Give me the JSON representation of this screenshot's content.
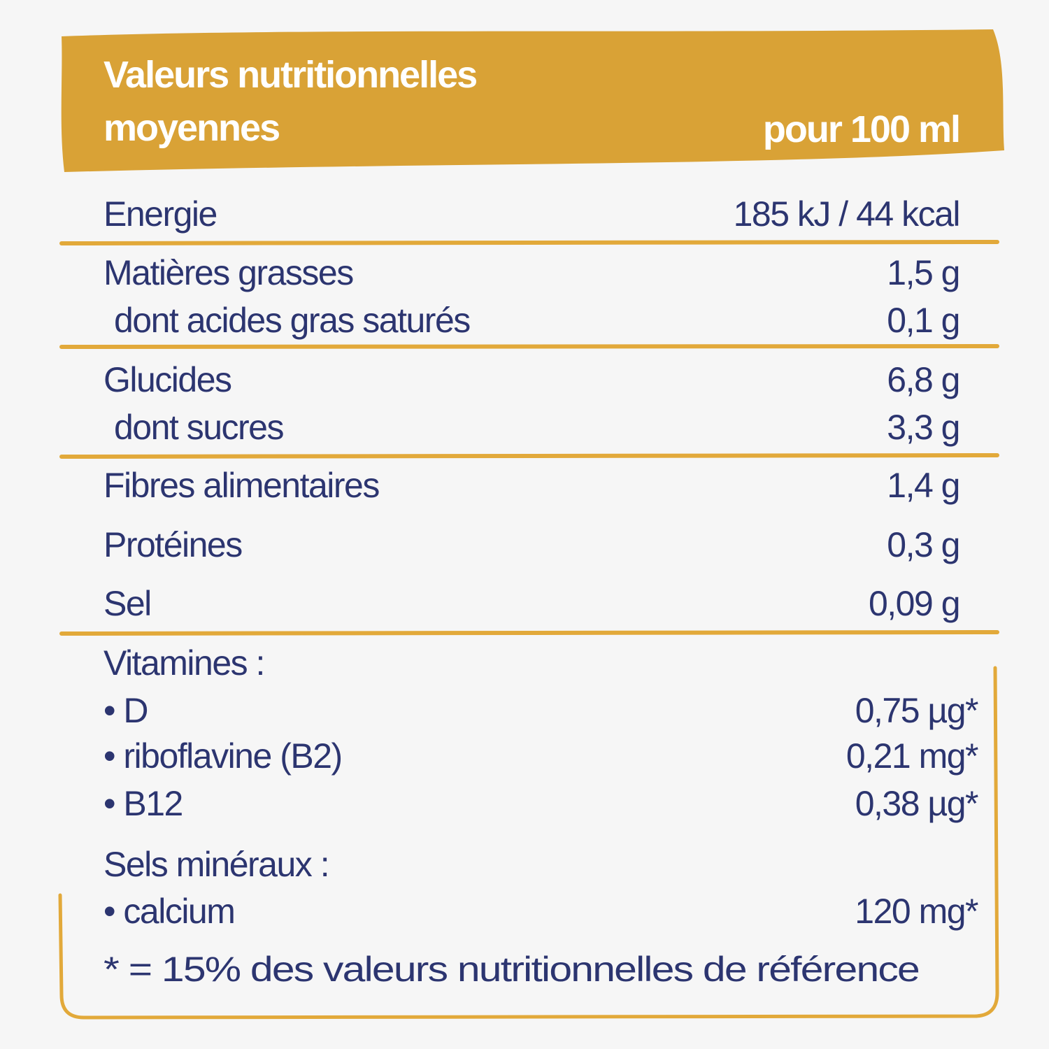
{
  "header": {
    "title_lines": [
      "Valeurs nutritionnelles",
      "moyennes"
    ],
    "unit": "pour 100 ml"
  },
  "table": {
    "rows": [
      [
        "Energie",
        "185 kJ / 44 kcal"
      ],
      [
        "Matières grasses",
        "1,5 g"
      ],
      [
        "dont acides gras saturés",
        "0,1 g"
      ],
      [
        "Glucides",
        "6,8 g"
      ],
      [
        "dont sucres",
        "3,3 g"
      ],
      [
        "Fibres alimentaires",
        "1,4 g"
      ],
      [
        "Protéines",
        "0,3 g"
      ],
      [
        "Sel",
        "0,09 g"
      ]
    ]
  },
  "vitamins": {
    "heading": "Vitamines :",
    "items": [
      [
        "• D",
        "0,75 µg*"
      ],
      [
        "• riboflavine (B2)",
        "0,21 mg*"
      ],
      [
        "• B12",
        "0,38 µg*"
      ]
    ]
  },
  "minerals": {
    "heading": "Sels minéraux :",
    "items": [
      [
        "• calcium",
        "120 mg*"
      ]
    ]
  },
  "footnote": "* = 15% des valeurs nutritionnelles de référence"
}
